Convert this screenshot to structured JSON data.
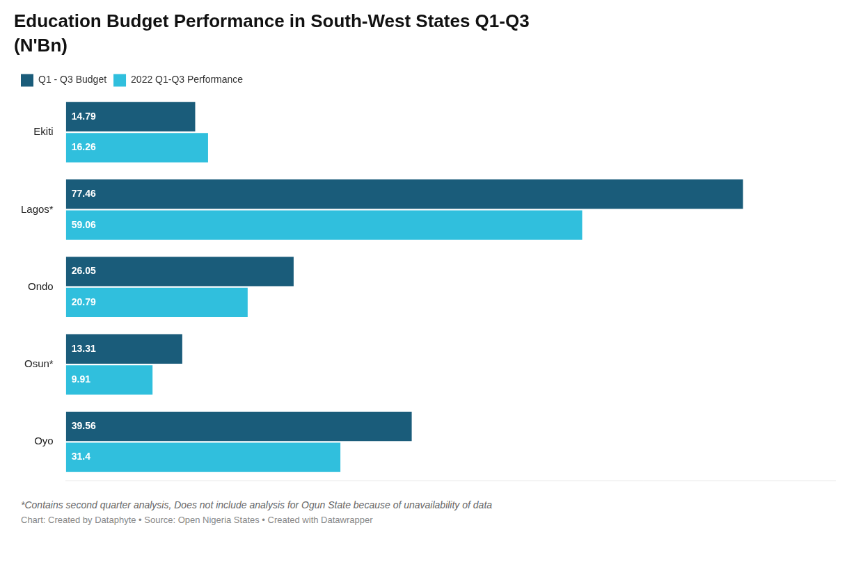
{
  "chart_data": {
    "type": "bar",
    "orientation": "horizontal",
    "title": "Education Budget Performance in South-West States Q1-Q3",
    "subtitle": "(N'Bn)",
    "categories": [
      "Ekiti",
      "Lagos*",
      "Ondo",
      "Osun*",
      "Oyo"
    ],
    "series": [
      {
        "name": "Q1 - Q3 Budget",
        "color": "#1a5c7a",
        "values": [
          14.79,
          77.46,
          26.05,
          13.31,
          39.56
        ]
      },
      {
        "name": "2022 Q1-Q3 Performance",
        "color": "#30bfdd",
        "values": [
          16.26,
          59.06,
          20.79,
          9.91,
          31.4
        ]
      }
    ],
    "xlim": [
      0,
      88
    ],
    "tick_labels": "y",
    "grid": false,
    "legend": "upper left",
    "data_labels": true,
    "annotations": [
      "*Contains second quarter analysis, Does not include analysis for Ogun State because of unavailability of data",
      "Chart: Created by Dataphyte • Source: Open Nigeria States • Created with Datawrapper"
    ]
  }
}
